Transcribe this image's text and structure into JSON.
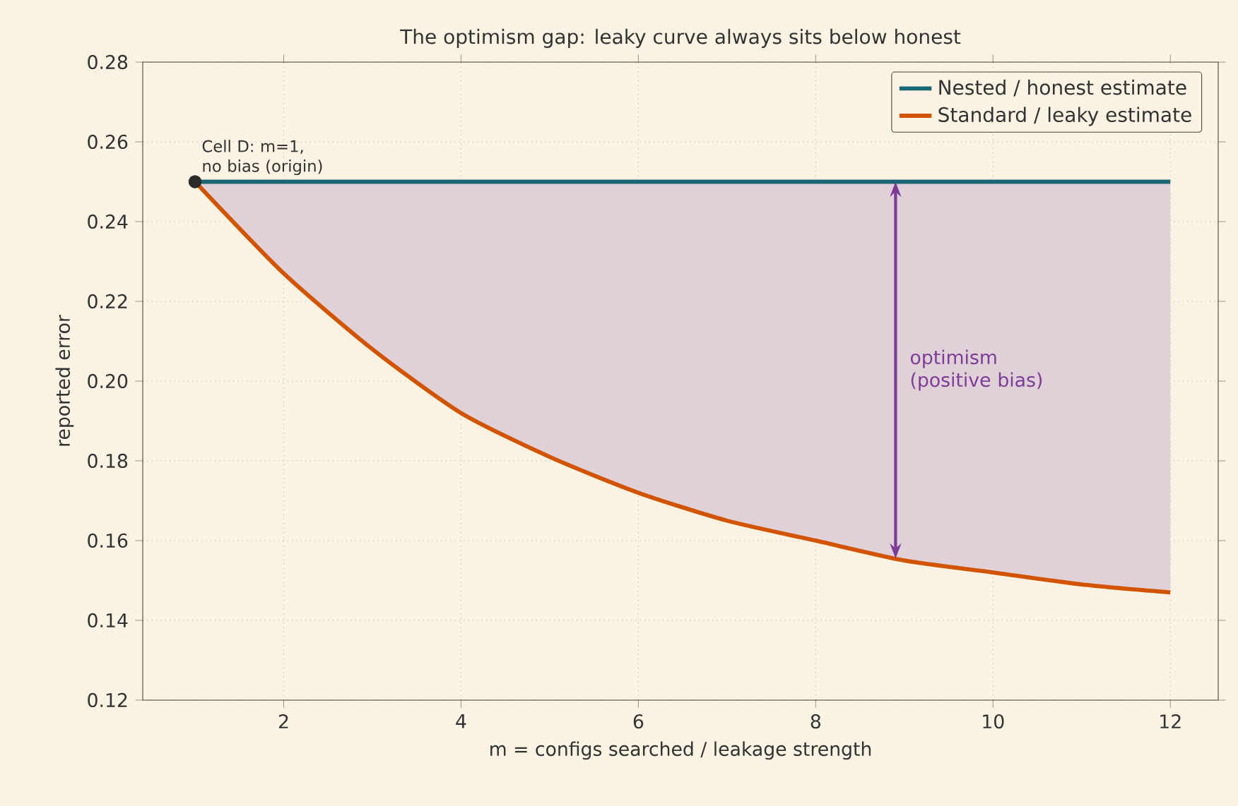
{
  "chart_data": {
    "type": "line",
    "title": "The optimism gap: leaky curve always sits below honest",
    "xlabel": "m = configs searched / leakage strength",
    "ylabel": "reported error",
    "xlim": [
      0.41,
      12.54
    ],
    "ylim": [
      0.12,
      0.28
    ],
    "xticks": [
      2,
      4,
      6,
      8,
      10,
      12
    ],
    "yticks": [
      0.12,
      0.14,
      0.16,
      0.18,
      {
        "value": 0.2,
        "label": "0.20"
      },
      0.22,
      0.24,
      0.26,
      0.28
    ],
    "grid": true,
    "legend": "top right",
    "series": [
      {
        "name": "Nested / honest estimate",
        "color": "#1b6674",
        "x": [
          1,
          2,
          3,
          4,
          5,
          6,
          7,
          8,
          9,
          10,
          11,
          12
        ],
        "values": [
          0.25,
          0.25,
          0.25,
          0.25,
          0.25,
          0.25,
          0.25,
          0.25,
          0.25,
          0.25,
          0.25,
          0.25
        ]
      },
      {
        "name": "Standard / leaky estimate",
        "color": "#d35400",
        "x": [
          1,
          2,
          3,
          4,
          5,
          6,
          7,
          8,
          9,
          10,
          11,
          12
        ],
        "values": [
          0.25,
          0.227,
          0.208,
          0.192,
          0.181,
          0.172,
          0.165,
          0.16,
          0.155,
          0.152,
          0.149,
          0.147
        ],
        "lower": [
          0.25,
          0.227,
          0.208,
          0.192,
          0.181,
          0.172,
          0.165,
          0.16,
          0.155,
          0.152,
          0.149,
          0.147
        ],
        "upper": [
          0.25,
          0.25,
          0.25,
          0.25,
          0.25,
          0.25,
          0.25,
          0.25,
          0.25,
          0.25,
          0.25,
          0.25
        ]
      },
      {
        "type": "scatter",
        "color": "#2b2b2b",
        "x": [
          1
        ],
        "values": [
          0.25
        ]
      }
    ],
    "annotations": [
      {
        "text": "Cell D: m=1, no bias (origin)",
        "x": 1,
        "y": 0.25
      },
      "optimism (positive bias)"
    ]
  }
}
